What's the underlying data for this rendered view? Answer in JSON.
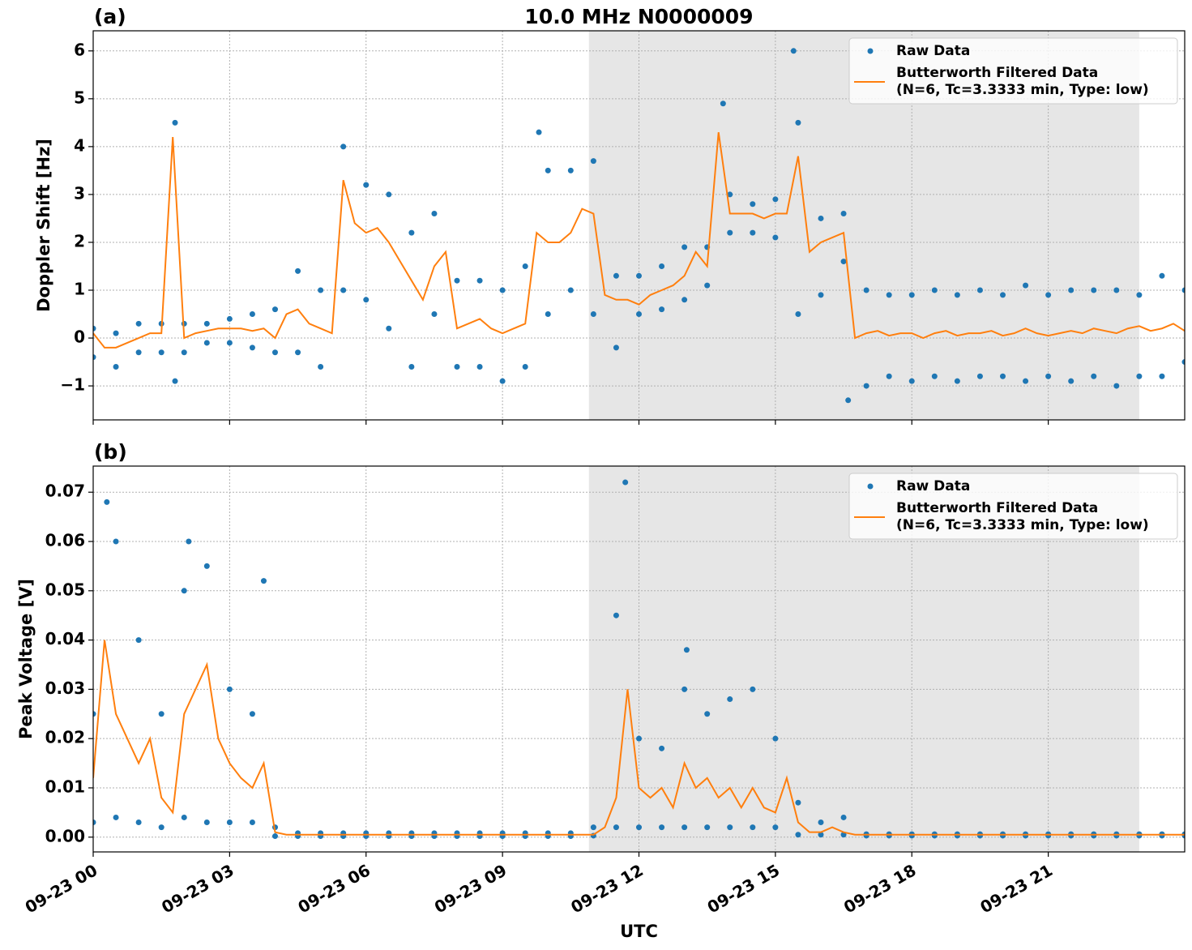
{
  "chart_data": [
    {
      "type": "line",
      "title": "10.0 MHz N0000009",
      "panel_label": "(a)",
      "ylabel": "Doppler Shift [Hz]",
      "xlim": [
        0,
        24
      ],
      "xticks": [
        0,
        3,
        6,
        9,
        12,
        15,
        18,
        21
      ],
      "ylim": [
        -1.71,
        6.42
      ],
      "yticks": [
        {
          "value": -1,
          "label": "−1"
        },
        0,
        1,
        2,
        3,
        4,
        5,
        6
      ],
      "grid": true,
      "legend": "upper right",
      "shade": [
        10.9,
        23.0
      ],
      "shade_color": "#e6e6e6",
      "series": [
        {
          "name": "Raw Data",
          "type": "scatter",
          "color": "#1f77b4",
          "x": [
            0,
            0,
            0.5,
            0.5,
            1,
            1,
            1.5,
            1.5,
            2,
            2,
            2.5,
            2.5,
            3,
            3,
            3.5,
            3.5,
            4,
            4,
            4.5,
            4.5,
            5,
            5,
            5.5,
            5.5,
            6,
            6,
            6.5,
            6.5,
            7,
            7,
            7.5,
            7.5,
            8,
            8,
            8.5,
            8.5,
            9,
            9,
            9.5,
            9.5,
            10,
            10,
            10.5,
            10.5,
            11,
            11,
            11.5,
            11.5,
            12,
            12,
            12.5,
            12.5,
            13,
            13,
            13.5,
            13.5,
            14,
            14,
            14.5,
            14.5,
            15,
            15,
            15.5,
            15.5,
            16,
            16,
            16.5,
            16.5,
            17,
            17,
            17.5,
            17.5,
            18,
            18,
            18.5,
            18.5,
            19,
            19,
            19.5,
            19.5,
            20,
            20,
            20.5,
            20.5,
            21,
            21,
            21.5,
            21.5,
            22,
            22,
            22.5,
            22.5,
            23,
            23,
            23.5,
            23.5,
            24,
            24,
            1.8,
            1.8,
            9.8,
            13.85,
            15.4,
            16.6
          ],
          "values": [
            0.2,
            -0.4,
            0.1,
            -0.6,
            0.3,
            -0.3,
            0.3,
            -0.3,
            0.3,
            -0.3,
            0.3,
            -0.1,
            0.4,
            -0.1,
            0.5,
            -0.2,
            0.6,
            -0.3,
            1.4,
            -0.3,
            1.0,
            -0.6,
            4.0,
            1.0,
            3.2,
            0.8,
            3.0,
            0.2,
            2.2,
            -0.6,
            2.6,
            0.5,
            1.2,
            -0.6,
            1.2,
            -0.6,
            1.0,
            -0.9,
            1.5,
            -0.6,
            3.5,
            0.5,
            3.5,
            1.0,
            3.7,
            0.5,
            1.3,
            -0.2,
            1.3,
            0.5,
            1.5,
            0.6,
            1.9,
            0.8,
            1.9,
            1.1,
            3.0,
            2.2,
            2.8,
            2.2,
            2.9,
            2.1,
            4.5,
            0.5,
            2.5,
            0.9,
            2.6,
            1.6,
            1.0,
            -1.0,
            0.9,
            -0.8,
            0.9,
            -0.9,
            1.0,
            -0.8,
            0.9,
            -0.9,
            1.0,
            -0.8,
            0.9,
            -0.8,
            1.1,
            -0.9,
            0.9,
            -0.8,
            1.0,
            -0.9,
            1.0,
            -0.8,
            1.0,
            -1.0,
            0.9,
            -0.8,
            1.3,
            -0.8,
            1.0,
            -0.5,
            4.5,
            -0.9,
            4.3,
            4.9,
            6.0,
            -1.3
          ]
        },
        {
          "name": "Butterworth Filtered Data\n(N=6, Tc=3.3333 min, Type: low)",
          "type": "line",
          "color": "#ff7f0e",
          "x": [
            0,
            0.25,
            0.5,
            0.75,
            1,
            1.25,
            1.5,
            1.75,
            2,
            2.25,
            2.5,
            2.75,
            3,
            3.25,
            3.5,
            3.75,
            4,
            4.25,
            4.5,
            4.75,
            5,
            5.25,
            5.5,
            5.75,
            6,
            6.25,
            6.5,
            6.75,
            7,
            7.25,
            7.5,
            7.75,
            8,
            8.25,
            8.5,
            8.75,
            9,
            9.25,
            9.5,
            9.75,
            10,
            10.25,
            10.5,
            10.75,
            11,
            11.25,
            11.5,
            11.75,
            12,
            12.25,
            12.5,
            12.75,
            13,
            13.25,
            13.5,
            13.75,
            14,
            14.25,
            14.5,
            14.75,
            15,
            15.25,
            15.5,
            15.75,
            16,
            16.25,
            16.5,
            16.75,
            17,
            17.25,
            17.5,
            17.75,
            18,
            18.25,
            18.5,
            18.75,
            19,
            19.25,
            19.5,
            19.75,
            20,
            20.25,
            20.5,
            20.75,
            21,
            21.25,
            21.5,
            21.75,
            22,
            22.25,
            22.5,
            22.75,
            23,
            23.25,
            23.5,
            23.75,
            24
          ],
          "values": [
            0.1,
            -0.2,
            -0.2,
            -0.1,
            0.0,
            0.1,
            0.1,
            4.2,
            0.0,
            0.1,
            0.15,
            0.2,
            0.2,
            0.2,
            0.15,
            0.2,
            0.0,
            0.5,
            0.6,
            0.3,
            0.2,
            0.1,
            3.3,
            2.4,
            2.2,
            2.3,
            2.0,
            1.6,
            1.2,
            0.8,
            1.5,
            1.8,
            0.2,
            0.3,
            0.4,
            0.2,
            0.1,
            0.2,
            0.3,
            2.2,
            2.0,
            2.0,
            2.2,
            2.7,
            2.6,
            0.9,
            0.8,
            0.8,
            0.7,
            0.9,
            1.0,
            1.1,
            1.3,
            1.8,
            1.5,
            4.3,
            2.6,
            2.6,
            2.6,
            2.5,
            2.6,
            2.6,
            3.8,
            1.8,
            2.0,
            2.1,
            2.2,
            0.0,
            0.1,
            0.15,
            0.05,
            0.1,
            0.1,
            0.0,
            0.1,
            0.15,
            0.05,
            0.1,
            0.1,
            0.15,
            0.05,
            0.1,
            0.2,
            0.1,
            0.05,
            0.1,
            0.15,
            0.1,
            0.2,
            0.15,
            0.1,
            0.2,
            0.25,
            0.15,
            0.2,
            0.3,
            0.15
          ]
        }
      ]
    },
    {
      "type": "line",
      "panel_label": "(b)",
      "ylabel": "Peak Voltage [V]",
      "xlabel": "UTC",
      "xlim": [
        0,
        24
      ],
      "xticks": [
        {
          "value": 0,
          "label": "09-23 00"
        },
        {
          "value": 3,
          "label": "09-23 03"
        },
        {
          "value": 6,
          "label": "09-23 06"
        },
        {
          "value": 9,
          "label": "09-23 09"
        },
        {
          "value": 12,
          "label": "09-23 12"
        },
        {
          "value": 15,
          "label": "09-23 15"
        },
        {
          "value": 18,
          "label": "09-23 18"
        },
        {
          "value": 21,
          "label": "09-23 21"
        }
      ],
      "ylim": [
        -0.003,
        0.0753
      ],
      "yticks": [
        {
          "value": 0,
          "label": "0.00"
        },
        0.01,
        0.02,
        0.03,
        0.04,
        0.05,
        0.06,
        0.07
      ],
      "grid": true,
      "legend": "upper right",
      "shade": [
        10.9,
        23.0
      ],
      "shade_color": "#e6e6e6",
      "series": [
        {
          "name": "Raw Data",
          "type": "scatter",
          "color": "#1f77b4",
          "x": [
            0,
            0,
            0.5,
            0.5,
            1,
            1,
            1.5,
            1.5,
            2,
            2,
            2.5,
            2.5,
            3,
            3,
            3.5,
            3.5,
            4,
            4,
            4.5,
            4.5,
            5,
            5,
            5.5,
            5.5,
            6,
            6,
            6.5,
            6.5,
            7,
            7,
            7.5,
            7.5,
            8,
            8,
            8.5,
            8.5,
            9,
            9,
            9.5,
            9.5,
            10,
            10,
            10.5,
            10.5,
            11,
            11,
            11.5,
            11.5,
            12,
            12,
            12.5,
            12.5,
            13,
            13,
            13.5,
            13.5,
            14,
            14,
            14.5,
            14.5,
            15,
            15,
            15.5,
            15.5,
            16,
            16,
            16.5,
            16.5,
            17,
            17,
            17.5,
            17.5,
            18,
            18,
            18.5,
            18.5,
            19,
            19,
            19.5,
            19.5,
            20,
            20,
            20.5,
            20.5,
            21,
            21,
            21.5,
            21.5,
            22,
            22,
            22.5,
            22.5,
            23,
            23,
            23.5,
            23.5,
            24,
            24,
            0.3,
            2.1,
            3.75,
            11.7,
            13.05
          ],
          "values": [
            0.025,
            0.003,
            0.06,
            0.004,
            0.04,
            0.003,
            0.025,
            0.002,
            0.05,
            0.004,
            0.055,
            0.003,
            0.03,
            0.003,
            0.025,
            0.003,
            0.002,
            0.0002,
            0.0008,
            0.0002,
            0.0008,
            0.0002,
            0.0008,
            0.0002,
            0.0008,
            0.0002,
            0.0008,
            0.0002,
            0.0008,
            0.0002,
            0.0008,
            0.0002,
            0.0008,
            0.0002,
            0.0008,
            0.0002,
            0.0008,
            0.0002,
            0.0008,
            0.0002,
            0.0008,
            0.0002,
            0.0008,
            0.0002,
            0.002,
            0.0003,
            0.045,
            0.002,
            0.02,
            0.002,
            0.018,
            0.002,
            0.03,
            0.002,
            0.025,
            0.002,
            0.028,
            0.002,
            0.03,
            0.002,
            0.02,
            0.002,
            0.007,
            0.0005,
            0.003,
            0.0005,
            0.004,
            0.0005,
            0.0006,
            0.0003,
            0.0006,
            0.0003,
            0.0006,
            0.0003,
            0.0006,
            0.0003,
            0.0006,
            0.0003,
            0.0006,
            0.0003,
            0.0006,
            0.0003,
            0.0006,
            0.0003,
            0.0006,
            0.0003,
            0.0006,
            0.0003,
            0.0006,
            0.0003,
            0.0006,
            0.0003,
            0.0006,
            0.0003,
            0.0006,
            0.0003,
            0.0006,
            0.0003,
            0.068,
            0.06,
            0.052,
            0.072,
            0.038
          ]
        },
        {
          "name": "Butterworth Filtered Data\n(N=6, Tc=3.3333 min, Type: low)",
          "type": "line",
          "color": "#ff7f0e",
          "x": [
            0,
            0.25,
            0.5,
            0.75,
            1,
            1.25,
            1.5,
            1.75,
            2,
            2.25,
            2.5,
            2.75,
            3,
            3.25,
            3.5,
            3.75,
            4,
            4.25,
            4.5,
            4.75,
            5,
            5.25,
            5.5,
            5.75,
            6,
            6.25,
            6.5,
            6.75,
            7,
            7.25,
            7.5,
            7.75,
            8,
            8.25,
            8.5,
            8.75,
            9,
            9.25,
            9.5,
            9.75,
            10,
            10.25,
            10.5,
            10.75,
            11,
            11.25,
            11.5,
            11.75,
            12,
            12.25,
            12.5,
            12.75,
            13,
            13.25,
            13.5,
            13.75,
            14,
            14.25,
            14.5,
            14.75,
            15,
            15.25,
            15.5,
            15.75,
            16,
            16.25,
            16.5,
            16.75,
            17,
            17.25,
            17.5,
            17.75,
            18,
            18.25,
            18.5,
            18.75,
            19,
            19.25,
            19.5,
            19.75,
            20,
            20.25,
            20.5,
            20.75,
            21,
            21.25,
            21.5,
            21.75,
            22,
            22.25,
            22.5,
            22.75,
            23,
            23.25,
            23.5,
            23.75,
            24
          ],
          "values": [
            0.012,
            0.04,
            0.025,
            0.02,
            0.015,
            0.02,
            0.008,
            0.005,
            0.025,
            0.03,
            0.035,
            0.02,
            0.015,
            0.012,
            0.01,
            0.015,
            0.001,
            0.0005,
            0.0005,
            0.0005,
            0.0005,
            0.0005,
            0.0005,
            0.0005,
            0.0005,
            0.0005,
            0.0005,
            0.0005,
            0.0005,
            0.0005,
            0.0005,
            0.0005,
            0.0005,
            0.0005,
            0.0005,
            0.0005,
            0.0005,
            0.0005,
            0.0005,
            0.0005,
            0.0005,
            0.0005,
            0.0005,
            0.0005,
            0.0005,
            0.002,
            0.008,
            0.03,
            0.01,
            0.008,
            0.01,
            0.006,
            0.015,
            0.01,
            0.012,
            0.008,
            0.01,
            0.006,
            0.01,
            0.006,
            0.005,
            0.012,
            0.003,
            0.001,
            0.001,
            0.002,
            0.001,
            0.0005,
            0.0005,
            0.0005,
            0.0005,
            0.0005,
            0.0005,
            0.0005,
            0.0005,
            0.0005,
            0.0005,
            0.0005,
            0.0005,
            0.0005,
            0.0005,
            0.0005,
            0.0005,
            0.0005,
            0.0005,
            0.0005,
            0.0005,
            0.0005,
            0.0005,
            0.0005,
            0.0005,
            0.0005,
            0.0005,
            0.0005,
            0.0005,
            0.0005,
            0.0005
          ]
        }
      ]
    }
  ]
}
